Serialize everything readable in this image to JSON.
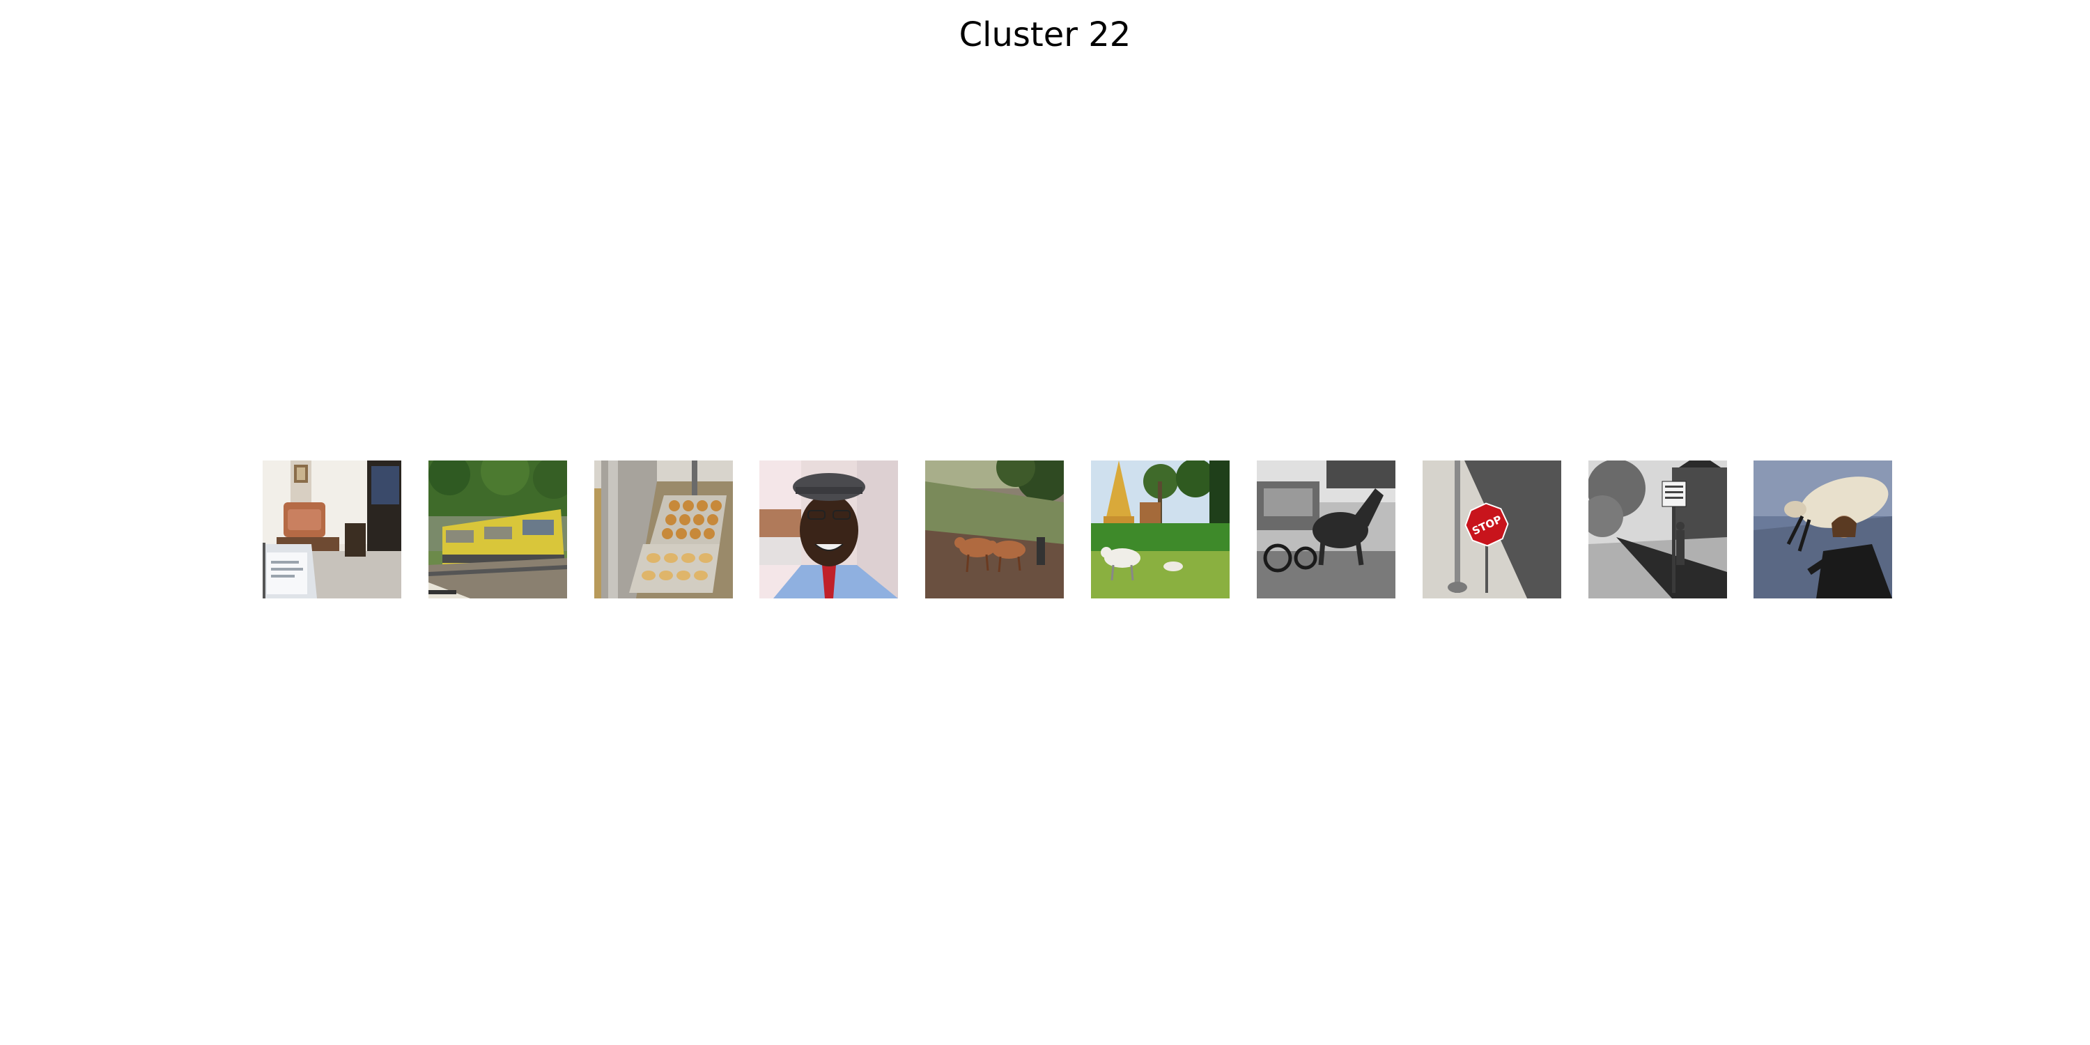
{
  "title": "Cluster 22",
  "images": [
    {
      "name": "living-room-laptop-photo",
      "grayscale": false
    },
    {
      "name": "yellow-train-photo",
      "grayscale": false
    },
    {
      "name": "baked-goods-tray-photo",
      "grayscale": false
    },
    {
      "name": "man-flat-cap-portrait-photo",
      "grayscale": false
    },
    {
      "name": "cows-on-dirt-hill-photo",
      "grayscale": false
    },
    {
      "name": "temple-cows-field-photo",
      "grayscale": false
    },
    {
      "name": "horse-wagon-bw-photo",
      "grayscale": true
    },
    {
      "name": "stop-sign-pole-photo",
      "grayscale": false,
      "sign_text": "STOP"
    },
    {
      "name": "street-sign-bw-photo",
      "grayscale": true
    },
    {
      "name": "man-carrying-sheep-photo",
      "grayscale": false
    }
  ]
}
